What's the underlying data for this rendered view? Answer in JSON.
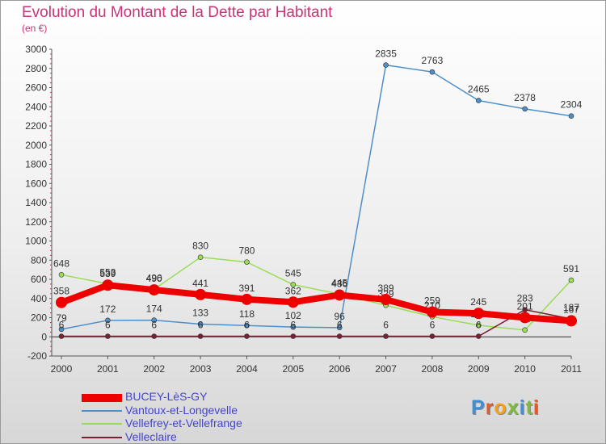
{
  "title": "Evolution du Montant de la Dette par Habitant",
  "subtitle": "(en €)",
  "chart_data": {
    "type": "line",
    "x": [
      2000,
      2001,
      2002,
      2003,
      2004,
      2005,
      2006,
      2007,
      2008,
      2009,
      2010,
      2011
    ],
    "ylim": [
      -200,
      3000
    ],
    "y_ticks": [
      -200,
      0,
      200,
      400,
      600,
      800,
      1000,
      1200,
      1400,
      1600,
      1800,
      2000,
      2200,
      2400,
      2600,
      2800,
      3000
    ],
    "grid": false,
    "legend_position": "bottom-left",
    "series": [
      {
        "name": "BUCEY-LèS-GY",
        "color": "#ee0000",
        "values": [
          358,
          539,
          490,
          441,
          391,
          362,
          436,
          389,
          259,
          245,
          201,
          167
        ]
      },
      {
        "name": "Vantoux-et-Longevelle",
        "color": "#4f8fc8",
        "values": [
          79,
          172,
          174,
          133,
          118,
          102,
          96,
          2835,
          2763,
          2465,
          2378,
          2304
        ]
      },
      {
        "name": "Vellefrey-et-Vellefrange",
        "color": "#99dd55",
        "values": [
          648,
          553,
          496,
          830,
          780,
          545,
          445,
          329,
          210,
          120,
          71,
          591
        ]
      },
      {
        "name": "Velleclaire",
        "color": "#772233",
        "values": [
          6,
          6,
          6,
          6,
          6,
          6,
          6,
          6,
          6,
          6,
          283,
          187
        ]
      }
    ]
  },
  "logo": {
    "text": "Proxiti",
    "colors": [
      "#3d8fd8",
      "#e05a2b",
      "#f3a21b",
      "#7cbb3b",
      "#3d8fd8",
      "#7cbb3b",
      "#e05a2b"
    ]
  }
}
